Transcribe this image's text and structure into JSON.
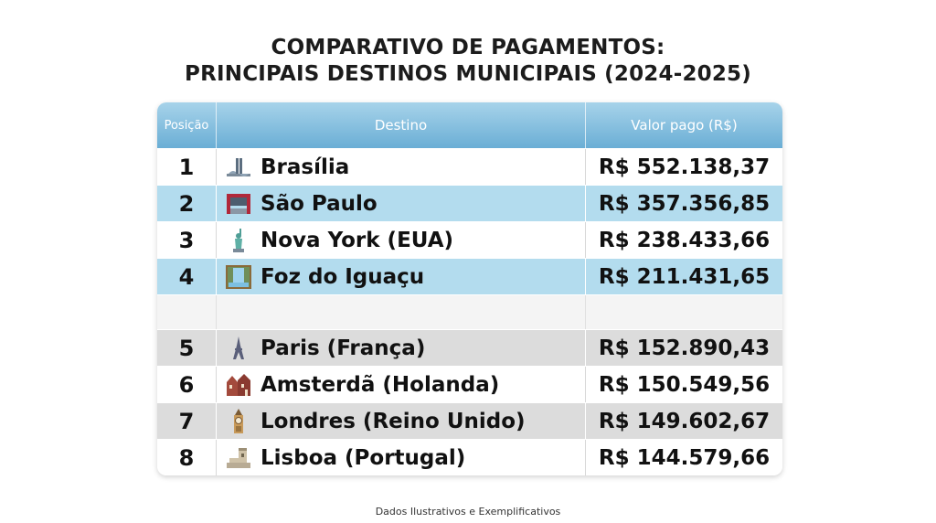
{
  "title_line1": "COMPARATIVO DE PAGAMENTOS:",
  "title_line2": "PRINCIPAIS DESTINOS MUNICIPAIS (2024-2025)",
  "headers": {
    "position": "Posição",
    "destination": "Destino",
    "value": "Valor pago (R$)"
  },
  "rows": [
    {
      "pos": "1",
      "dest": "Brasília",
      "value": "R$ 552.138,37",
      "icon": "congress-icon"
    },
    {
      "pos": "2",
      "dest": "São Paulo",
      "value": "R$ 357.356,85",
      "icon": "masp-icon"
    },
    {
      "pos": "3",
      "dest": "Nova York (EUA)",
      "value": "R$ 238.433,66",
      "icon": "statue-of-liberty-icon"
    },
    {
      "pos": "4",
      "dest": "Foz do Iguaçu",
      "value": "R$ 211.431,65",
      "icon": "waterfall-icon"
    },
    {
      "pos": "5",
      "dest": "Paris (França)",
      "value": "R$ 152.890,43",
      "icon": "eiffel-tower-icon"
    },
    {
      "pos": "6",
      "dest": "Amsterdã (Holanda)",
      "value": "R$ 150.549,56",
      "icon": "canal-houses-icon"
    },
    {
      "pos": "7",
      "dest": "Londres (Reino Unido)",
      "value": "R$ 149.602,67",
      "icon": "big-ben-icon"
    },
    {
      "pos": "8",
      "dest": "Lisboa (Portugal)",
      "value": "R$ 144.579,66",
      "icon": "belem-tower-icon"
    }
  ],
  "footer": "Dados Ilustrativos e Exemplificativos",
  "colors": {
    "header_top": "#a7d3ea",
    "header_bottom": "#6aaed5",
    "blue_row": "#b3dcee",
    "gray_row": "#dcdcdc"
  }
}
